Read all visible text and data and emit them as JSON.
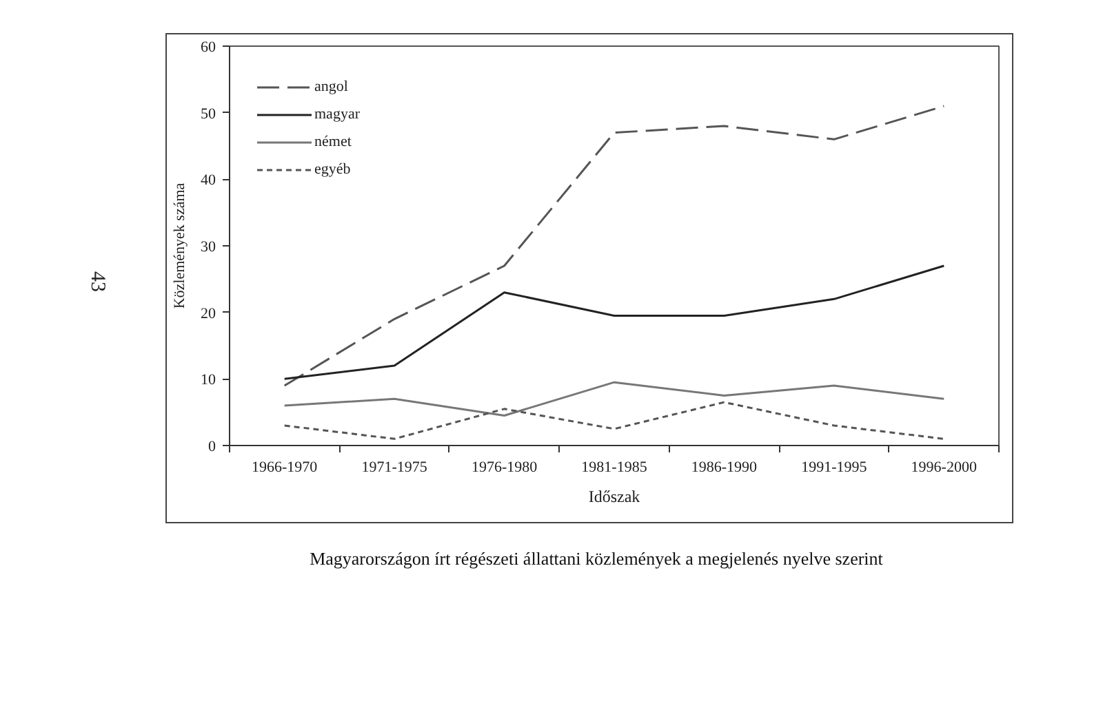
{
  "chart_data": {
    "type": "line",
    "title": "Magyarországon írt régészeti állattani közlemények a megjelenés nyelve szerint",
    "xlabel": "Időszak",
    "ylabel": "Közlemények száma",
    "annotations": [
      "43"
    ],
    "categories": [
      "1966-1970",
      "1971-1975",
      "1976-1980",
      "1981-1985",
      "1986-1990",
      "1991-1995",
      "1996-2000"
    ],
    "series": [
      {
        "name": "angol",
        "color": "#555555",
        "line_style": "dashed",
        "values": [
          9,
          19,
          27,
          47,
          48,
          46,
          51
        ]
      },
      {
        "name": "magyar",
        "color": "#222222",
        "line_style": "solid",
        "values": [
          10,
          12,
          23,
          19.5,
          19.5,
          22,
          27
        ]
      },
      {
        "name": "német",
        "color": "#777777",
        "line_style": "solid",
        "values": [
          6,
          7,
          4.5,
          9.5,
          7.5,
          9,
          7
        ]
      },
      {
        "name": "egyéb",
        "color": "#555555",
        "line_style": "dotted",
        "values": [
          3,
          1,
          5.5,
          2.5,
          6.5,
          3,
          1
        ]
      }
    ],
    "ylim": [
      0,
      60
    ],
    "yticks": [
      0,
      10,
      20,
      30,
      40,
      50,
      60
    ],
    "grid": false,
    "legend": "top left"
  }
}
